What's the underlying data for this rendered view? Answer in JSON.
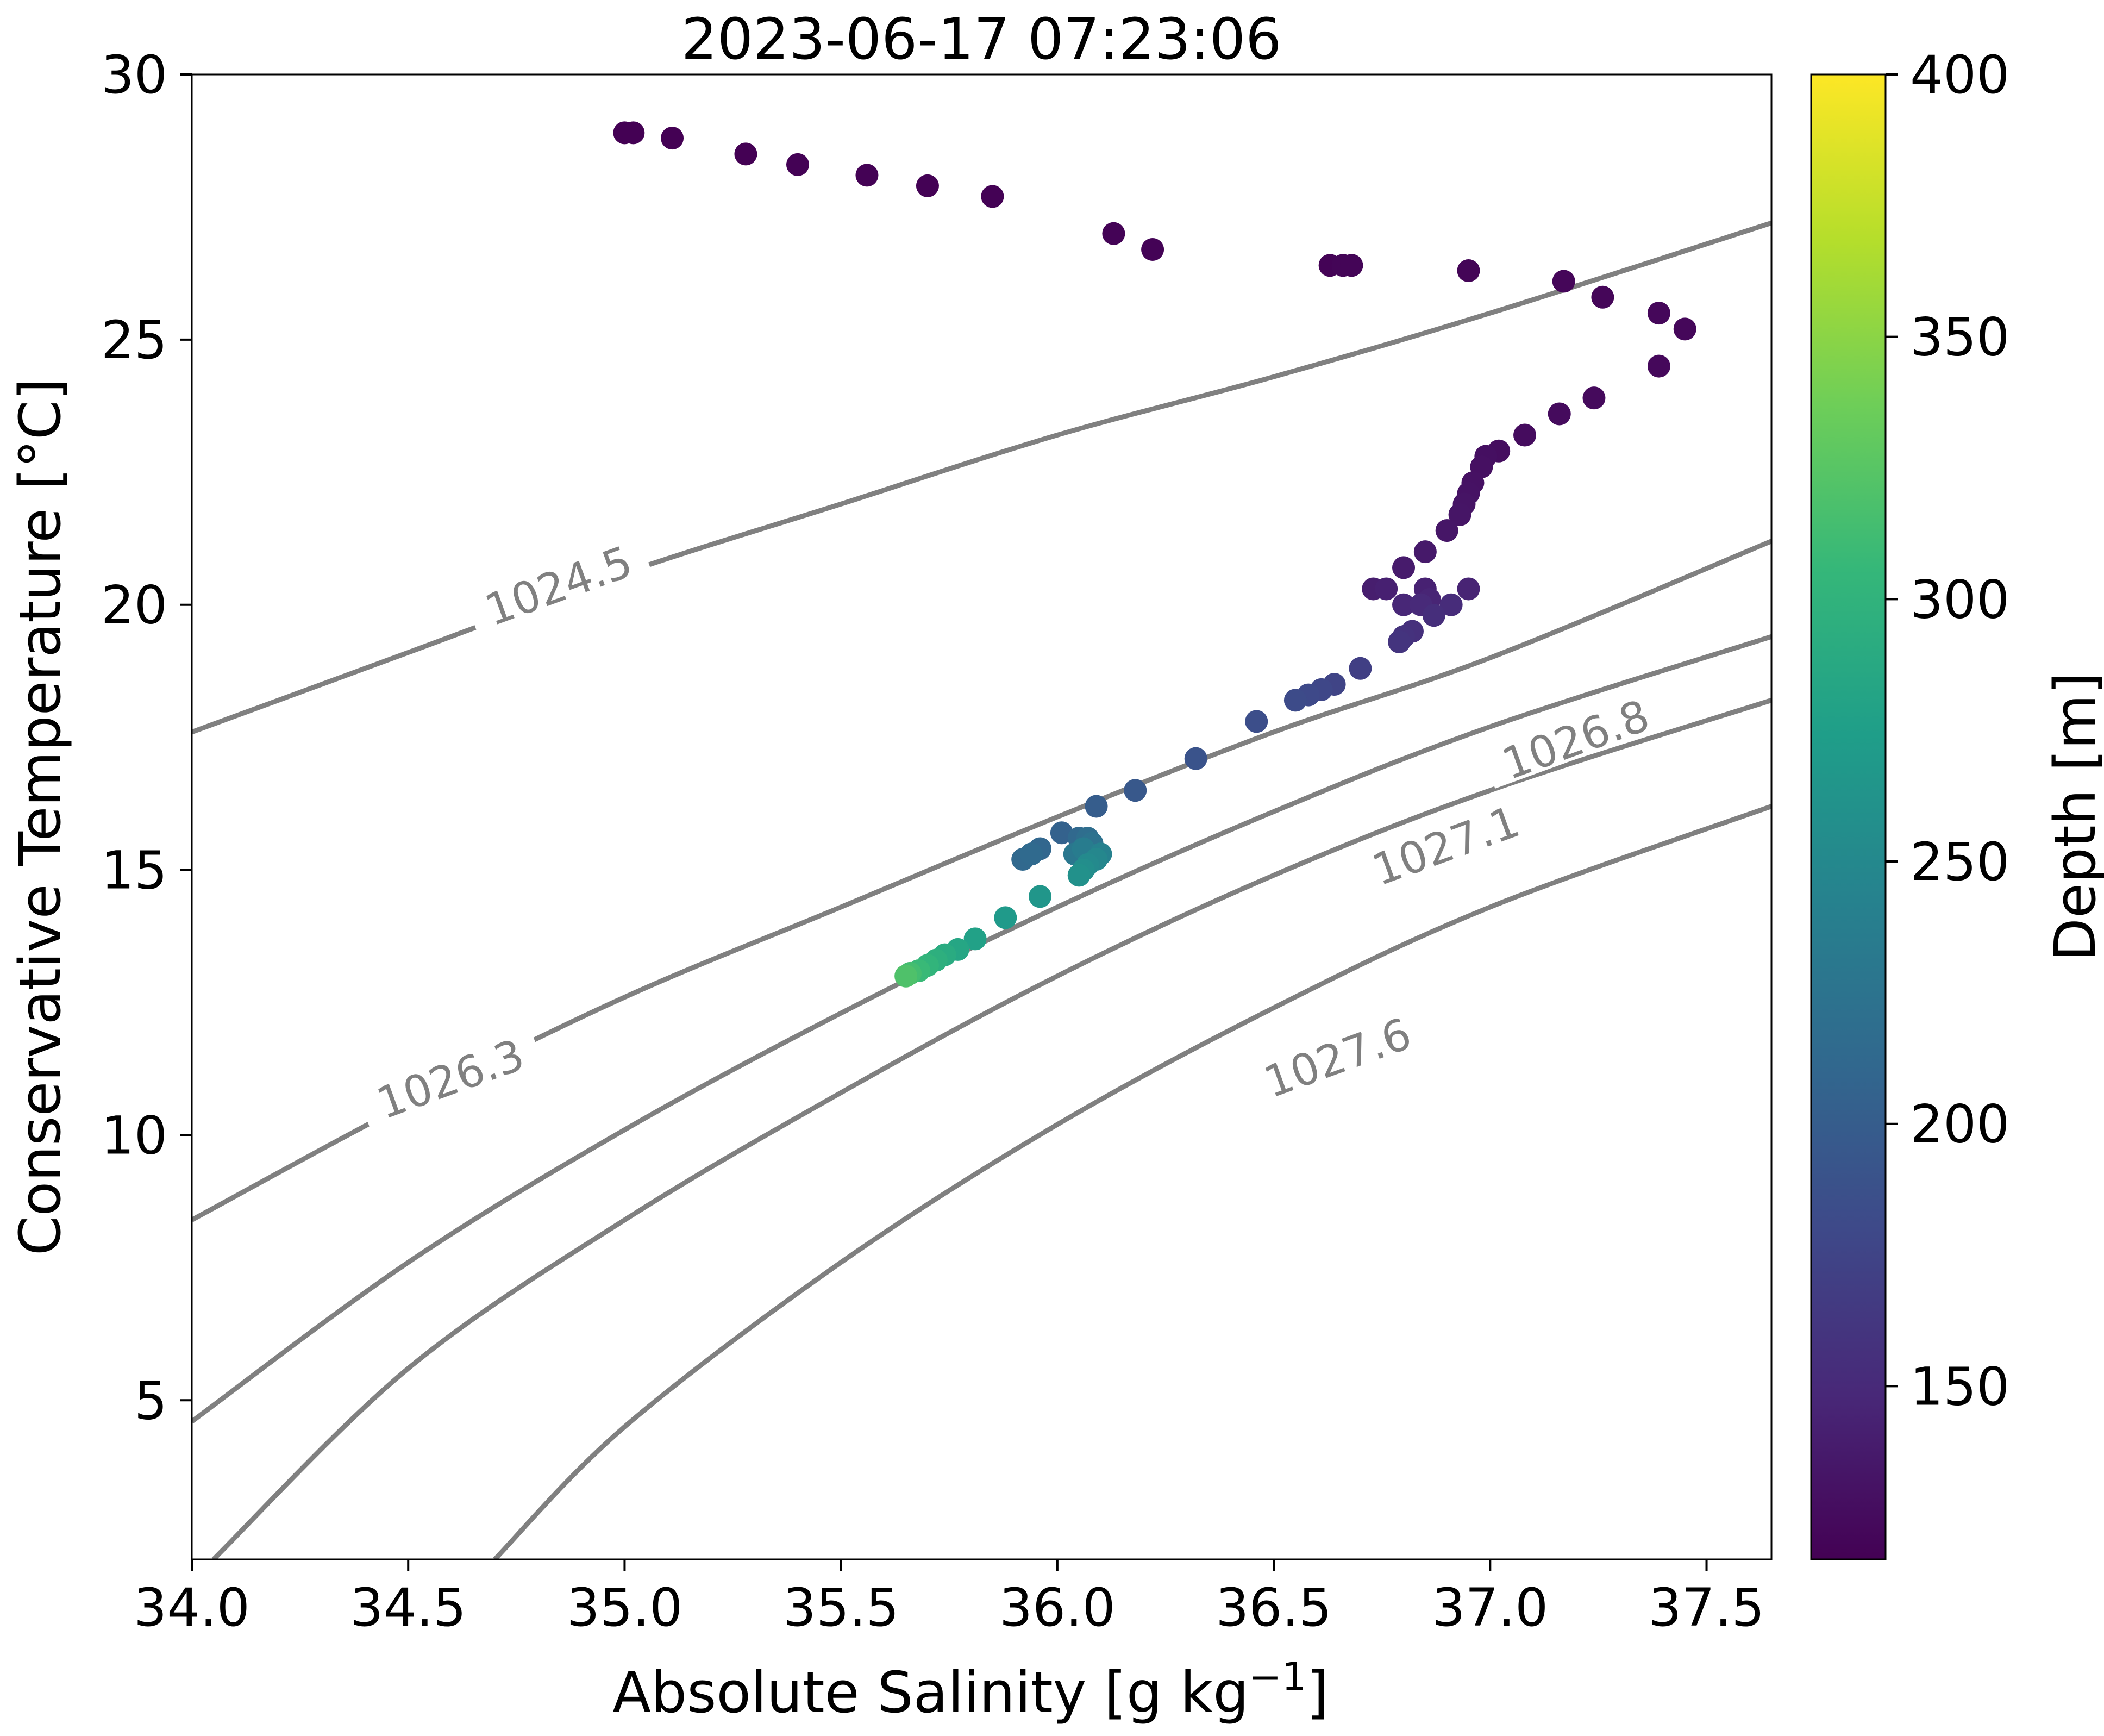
{
  "chart_data": {
    "type": "scatter",
    "title": "2023-06-17 07:23:06",
    "xlabel": "Absolute Salinity [g kg",
    "xlabel_superscript": "−1",
    "xlabel_suffix": "]",
    "ylabel": "Conservative Temperature [°C]",
    "xlim": [
      34.0,
      37.65
    ],
    "ylim": [
      2.0,
      30.0
    ],
    "x_ticks": [
      "34.0",
      "34.5",
      "35.0",
      "35.5",
      "36.0",
      "36.5",
      "37.0",
      "37.5"
    ],
    "y_ticks": [
      "5",
      "10",
      "15",
      "20",
      "25",
      "30"
    ],
    "grid": false,
    "colorbar": {
      "label": "Depth [m]",
      "min": 117,
      "max": 400,
      "ticks": [
        "150",
        "200",
        "250",
        "300",
        "350",
        "400"
      ],
      "colormap": "viridis",
      "colors": [
        "#440154",
        "#482878",
        "#3e4989",
        "#31688e",
        "#26828e",
        "#1f9e89",
        "#35b779",
        "#6ece58",
        "#b5de2b",
        "#fde725"
      ]
    },
    "contours": {
      "color": "#808080",
      "labels": [
        {
          "text": "1024.5",
          "x": 34.85,
          "y": 20.3
        },
        {
          "text": "1026.3",
          "x": 34.6,
          "y": 11.0
        },
        {
          "text": "1026.8",
          "x": 37.2,
          "y": 17.4
        },
        {
          "text": "1027.1",
          "x": 36.9,
          "y": 15.4
        },
        {
          "text": "1027.6",
          "x": 36.65,
          "y": 11.4
        }
      ],
      "lines": [
        {
          "name": "1024.5",
          "points": [
            [
              34.0,
              17.6
            ],
            [
              34.5,
              19.1
            ],
            [
              35.0,
              20.6
            ],
            [
              35.5,
              21.9
            ],
            [
              36.0,
              23.2
            ],
            [
              36.5,
              24.3
            ],
            [
              37.0,
              25.5
            ],
            [
              37.65,
              27.2
            ]
          ]
        },
        {
          "name": "1026.3",
          "points": [
            [
              34.0,
              8.4
            ],
            [
              34.5,
              10.6
            ],
            [
              35.0,
              12.6
            ],
            [
              35.5,
              14.3
            ],
            [
              36.0,
              16.0
            ],
            [
              36.5,
              17.6
            ],
            [
              37.0,
              19.0
            ],
            [
              37.65,
              21.2
            ]
          ]
        },
        {
          "name": "1026.8",
          "points": [
            [
              34.0,
              4.6
            ],
            [
              34.5,
              7.6
            ],
            [
              35.0,
              10.1
            ],
            [
              35.5,
              12.3
            ],
            [
              36.0,
              14.3
            ],
            [
              36.5,
              16.1
            ],
            [
              37.0,
              17.7
            ],
            [
              37.65,
              19.4
            ]
          ]
        },
        {
          "name": "1027.1",
          "points": [
            [
              34.05,
              2.0
            ],
            [
              34.5,
              5.6
            ],
            [
              35.0,
              8.4
            ],
            [
              35.5,
              10.8
            ],
            [
              36.0,
              13.0
            ],
            [
              36.5,
              14.9
            ],
            [
              37.0,
              16.5
            ],
            [
              37.65,
              18.2
            ]
          ]
        },
        {
          "name": "1027.6",
          "points": [
            [
              34.7,
              2.0
            ],
            [
              35.0,
              4.5
            ],
            [
              35.5,
              7.6
            ],
            [
              36.0,
              10.2
            ],
            [
              36.5,
              12.4
            ],
            [
              37.0,
              14.3
            ],
            [
              37.65,
              16.2
            ]
          ]
        }
      ]
    },
    "series": [
      {
        "points": [
          [
            35.0,
            28.9,
            117
          ],
          [
            35.02,
            28.9,
            117
          ],
          [
            35.11,
            28.8,
            117
          ],
          [
            35.28,
            28.5,
            117
          ],
          [
            35.4,
            28.3,
            118
          ],
          [
            35.56,
            28.1,
            118
          ],
          [
            35.7,
            27.9,
            118
          ],
          [
            35.85,
            27.7,
            118
          ],
          [
            36.13,
            27.0,
            119
          ],
          [
            36.22,
            26.7,
            119
          ],
          [
            36.63,
            26.4,
            119
          ],
          [
            36.66,
            26.4,
            120
          ],
          [
            36.68,
            26.4,
            120
          ],
          [
            36.95,
            26.3,
            120
          ],
          [
            37.17,
            26.1,
            121
          ],
          [
            37.26,
            25.8,
            121
          ],
          [
            37.39,
            25.5,
            122
          ],
          [
            37.45,
            25.2,
            122
          ],
          [
            37.39,
            24.5,
            123
          ],
          [
            37.24,
            23.9,
            124
          ],
          [
            37.16,
            23.6,
            125
          ],
          [
            37.08,
            23.2,
            126
          ],
          [
            37.02,
            22.9,
            127
          ],
          [
            36.99,
            22.8,
            128
          ],
          [
            36.98,
            22.6,
            129
          ],
          [
            36.96,
            22.3,
            130
          ],
          [
            36.95,
            22.1,
            131
          ],
          [
            36.94,
            21.9,
            132
          ],
          [
            36.93,
            21.7,
            133
          ],
          [
            36.9,
            21.4,
            134
          ],
          [
            36.85,
            21.0,
            136
          ],
          [
            36.8,
            20.7,
            138
          ],
          [
            36.73,
            20.3,
            140
          ],
          [
            36.76,
            20.3,
            142
          ],
          [
            36.85,
            20.3,
            143
          ],
          [
            36.95,
            20.3,
            145
          ],
          [
            36.86,
            20.1,
            146
          ],
          [
            36.8,
            20.0,
            148
          ],
          [
            36.84,
            20.0,
            150
          ],
          [
            36.91,
            20.0,
            152
          ],
          [
            36.87,
            19.8,
            154
          ],
          [
            36.82,
            19.5,
            156
          ],
          [
            36.8,
            19.4,
            158
          ],
          [
            36.79,
            19.3,
            160
          ],
          [
            36.7,
            18.8,
            170
          ],
          [
            36.64,
            18.5,
            175
          ],
          [
            36.61,
            18.4,
            178
          ],
          [
            36.58,
            18.3,
            180
          ],
          [
            36.55,
            18.2,
            182
          ],
          [
            36.46,
            17.8,
            185
          ],
          [
            36.32,
            17.1,
            190
          ],
          [
            36.18,
            16.5,
            195
          ],
          [
            36.09,
            16.2,
            200
          ],
          [
            36.01,
            15.7,
            205
          ],
          [
            36.05,
            15.6,
            212
          ],
          [
            36.07,
            15.6,
            218
          ],
          [
            36.08,
            15.5,
            224
          ],
          [
            35.96,
            15.4,
            210
          ],
          [
            35.92,
            15.2,
            212
          ],
          [
            35.94,
            15.3,
            214
          ],
          [
            36.04,
            15.3,
            230
          ],
          [
            36.06,
            15.4,
            236
          ],
          [
            36.1,
            15.3,
            242
          ],
          [
            36.09,
            15.2,
            248
          ],
          [
            36.07,
            15.1,
            252
          ],
          [
            36.06,
            15.0,
            256
          ],
          [
            36.05,
            14.9,
            260
          ],
          [
            35.96,
            14.5,
            265
          ],
          [
            35.88,
            14.1,
            270
          ],
          [
            35.81,
            13.7,
            278
          ],
          [
            35.77,
            13.5,
            284
          ],
          [
            35.74,
            13.4,
            290
          ],
          [
            35.72,
            13.3,
            296
          ],
          [
            35.7,
            13.2,
            302
          ],
          [
            35.68,
            13.1,
            308
          ],
          [
            35.66,
            13.05,
            314
          ],
          [
            35.65,
            13.0,
            320
          ]
        ]
      }
    ]
  }
}
